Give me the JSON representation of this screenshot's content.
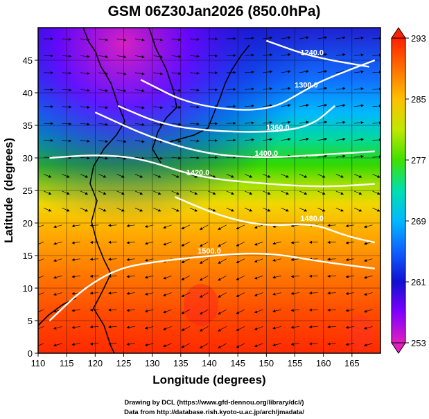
{
  "chart_data": {
    "type": "heatmap",
    "title": "GSM 06Z30Jan2026 (850.0hPa)",
    "xlabel": "Longitude (degrees)",
    "ylabel": "Latitude  (degrees)",
    "xlim": [
      110,
      170
    ],
    "ylim": [
      0,
      50
    ],
    "xticks": [
      110,
      115,
      120,
      125,
      130,
      135,
      140,
      145,
      150,
      155,
      160,
      165
    ],
    "yticks": [
      0,
      5,
      10,
      15,
      20,
      25,
      30,
      35,
      40,
      45
    ],
    "grid": true,
    "colorbar": {
      "min": 253,
      "max": 293,
      "ticks": [
        253,
        261,
        269,
        277,
        285,
        293
      ],
      "colors": [
        "#e020c0",
        "#8000ff",
        "#1010d0",
        "#1060ff",
        "#00b8ff",
        "#00e0b0",
        "#40e000",
        "#c0e800",
        "#ffc000",
        "#ff7000",
        "#ff2000"
      ]
    },
    "contours": [
      {
        "label": "1240.0",
        "points": [
          [
            150,
            48
          ],
          [
            158,
            45.5
          ],
          [
            168,
            44
          ]
        ]
      },
      {
        "label": "1300.0",
        "points": [
          [
            128,
            42
          ],
          [
            137,
            38
          ],
          [
            150,
            37
          ],
          [
            157,
            40.5
          ],
          [
            160,
            42
          ],
          [
            169,
            45
          ]
        ]
      },
      {
        "label": "1360.0",
        "points": [
          [
            124,
            38
          ],
          [
            132,
            35
          ],
          [
            142,
            34
          ],
          [
            152,
            34
          ],
          [
            158,
            35
          ],
          [
            162,
            38
          ]
        ]
      },
      {
        "label": "1400.0",
        "points": [
          [
            120,
            37
          ],
          [
            130,
            33
          ],
          [
            140,
            30.5
          ],
          [
            150,
            30
          ],
          [
            160,
            30.5
          ],
          [
            169,
            31
          ]
        ]
      },
      {
        "label": "1420.0",
        "points": [
          [
            112,
            30
          ],
          [
            120,
            30.5
          ],
          [
            128,
            30
          ],
          [
            138,
            27
          ],
          [
            150,
            26
          ],
          [
            160,
            25.5
          ],
          [
            169,
            26
          ]
        ]
      },
      {
        "label": "1480.0",
        "points": [
          [
            134,
            24
          ],
          [
            142,
            21
          ],
          [
            150,
            19.5
          ],
          [
            158,
            20
          ],
          [
            164,
            18
          ],
          [
            169,
            17
          ]
        ]
      },
      {
        "label": "1500.0",
        "points": [
          [
            112,
            5
          ],
          [
            118,
            10
          ],
          [
            124,
            13
          ],
          [
            130,
            14
          ],
          [
            140,
            15
          ],
          [
            150,
            15.5
          ],
          [
            160,
            14
          ],
          [
            169,
            13
          ]
        ]
      }
    ],
    "annotations": [
      "1240.0",
      "1300.0",
      "1360.0",
      "1400.0",
      "1420.0",
      "1480.0",
      "1500.0"
    ]
  },
  "credits": {
    "line1": "Drawing by DCL (https://www.gfd-dennou.org/library/dcl/)",
    "line2": "Data from http://database.rish.kyoto-u.ac.jp/arch/jmadata/"
  }
}
